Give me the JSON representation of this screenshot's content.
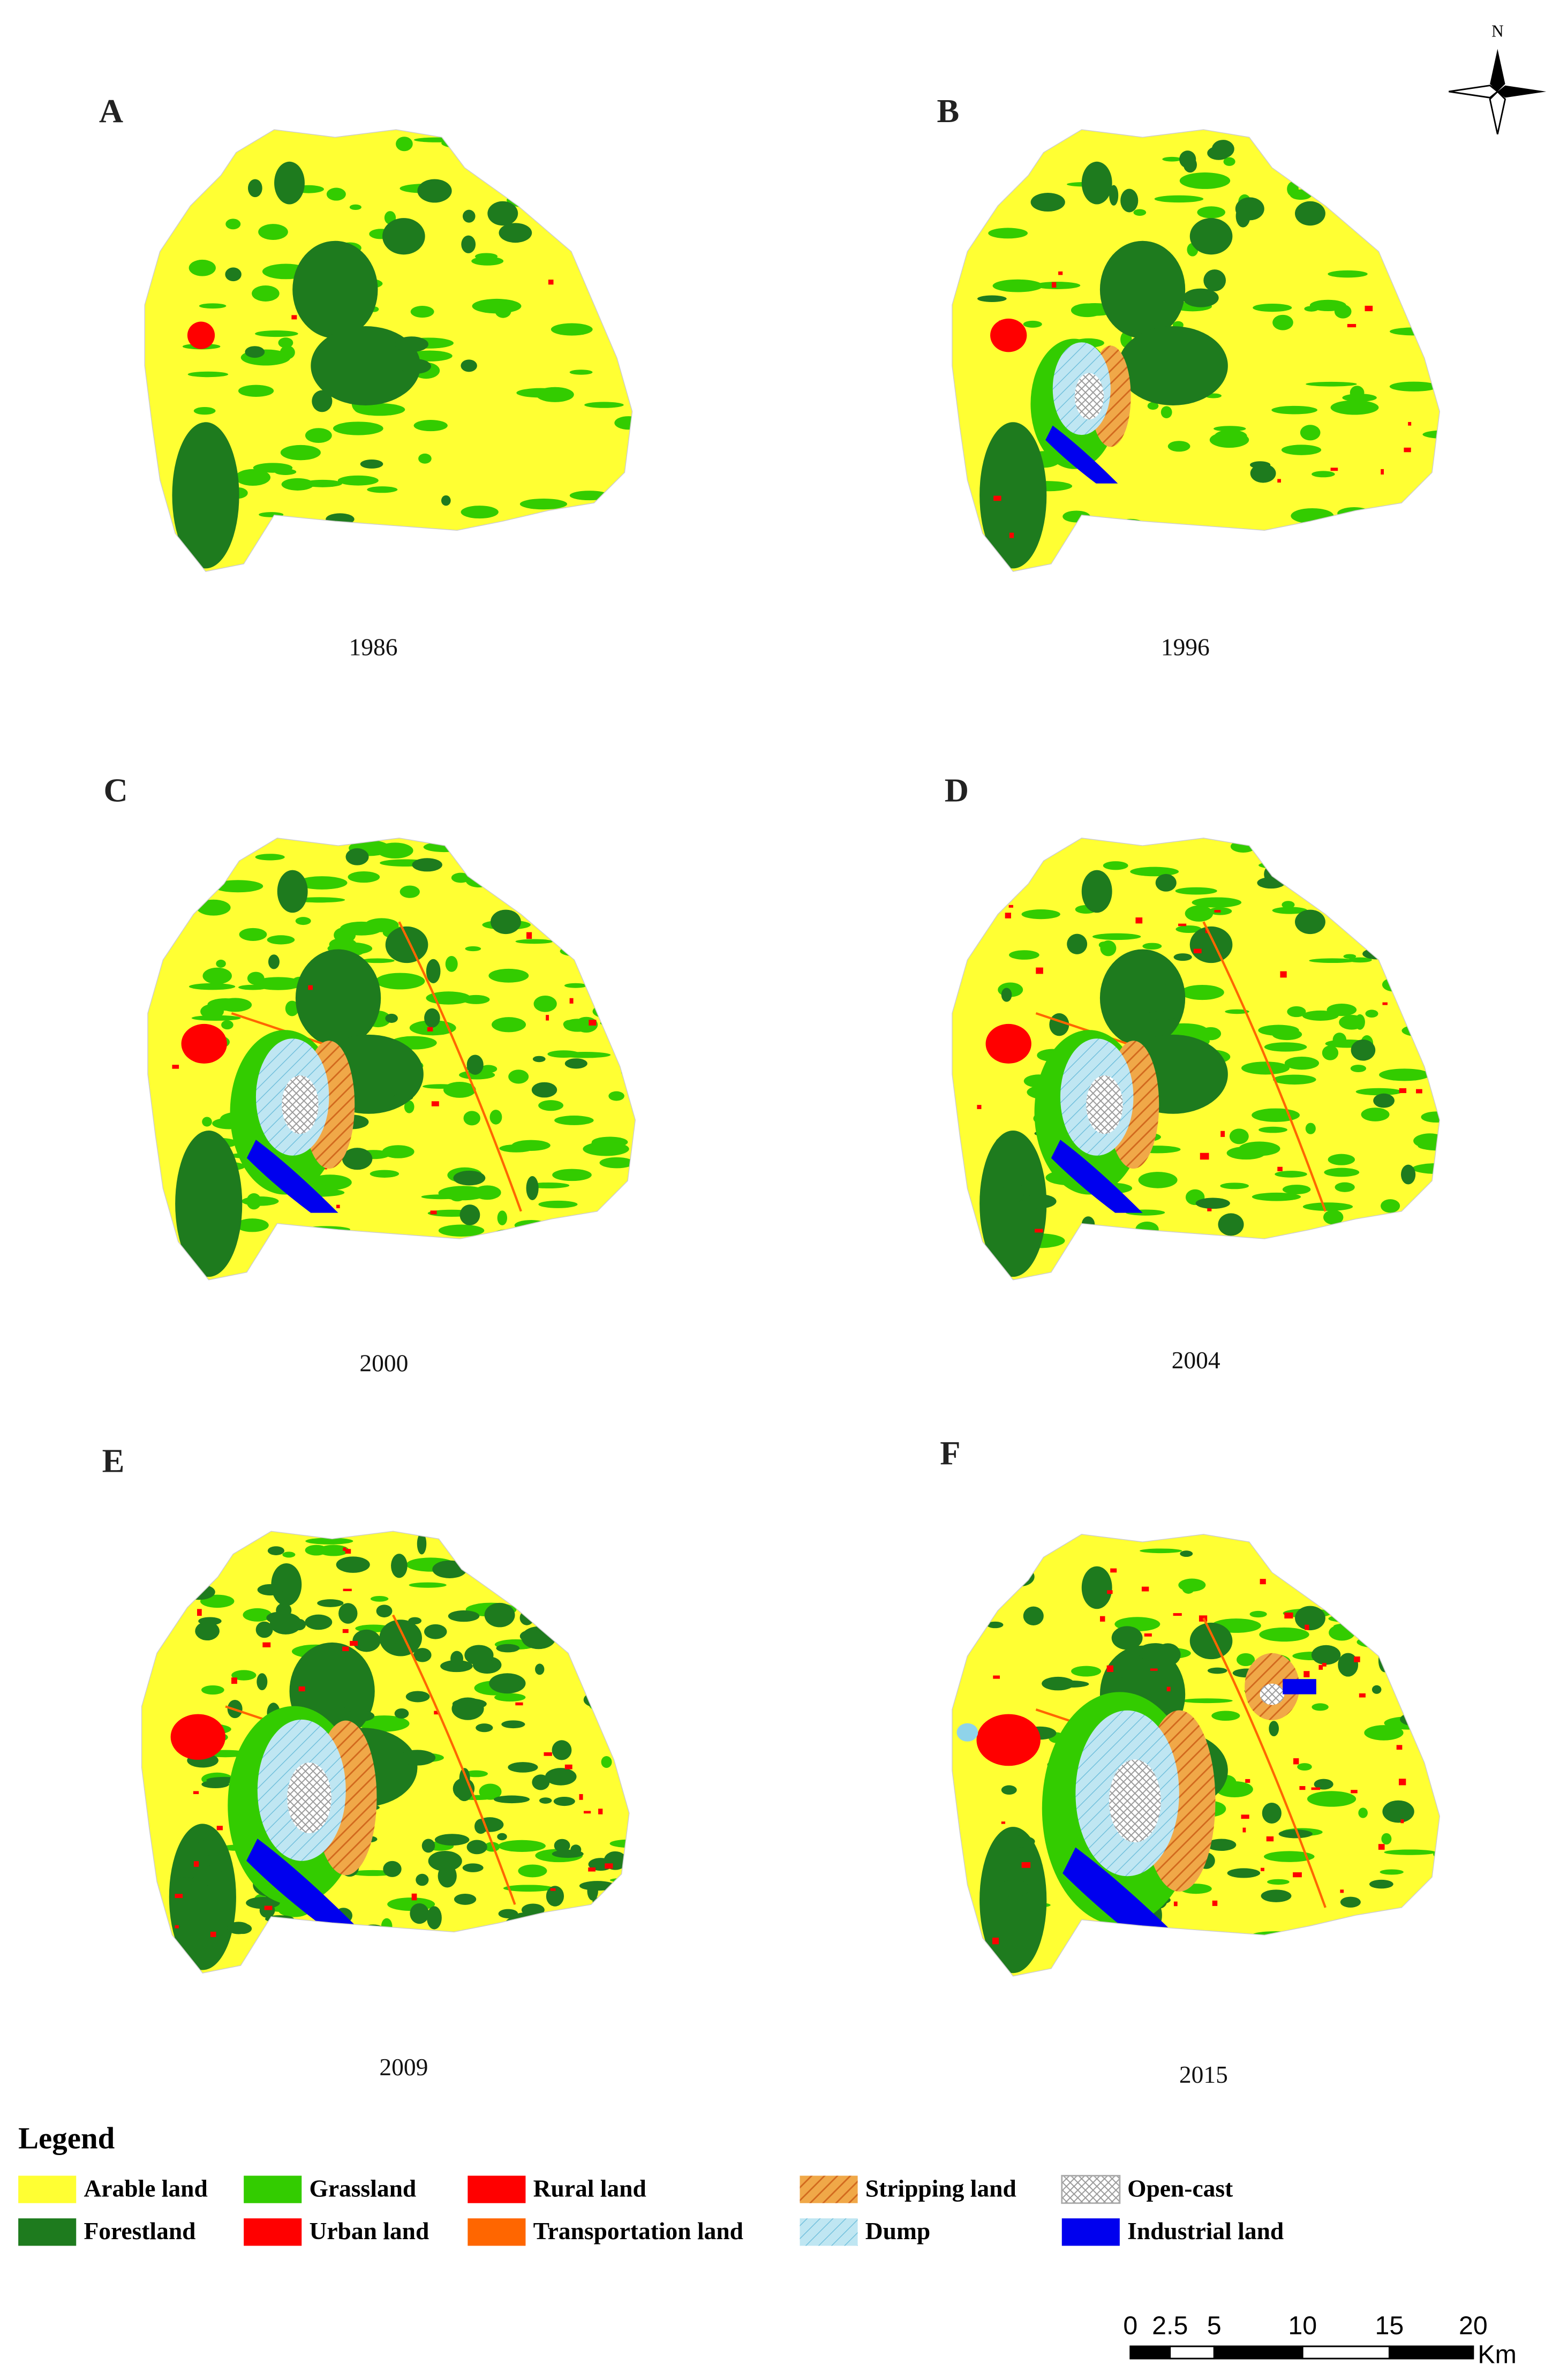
{
  "compass": {
    "label": "N"
  },
  "panels": [
    {
      "letter": "A",
      "year": "1986"
    },
    {
      "letter": "B",
      "year": "1996"
    },
    {
      "letter": "C",
      "year": "2000"
    },
    {
      "letter": "D",
      "year": "2004"
    },
    {
      "letter": "E",
      "year": "2009"
    },
    {
      "letter": "F",
      "year": "2015"
    }
  ],
  "legend": {
    "title": "Legend",
    "items": [
      "Arable land",
      "Grassland",
      "Rural land",
      "Stripping land",
      "Open-cast",
      "Forestland",
      "Urban land",
      "Transportation land",
      "Dump",
      "Industrial land"
    ]
  },
  "scale_bar": {
    "labels": [
      "0",
      "2.5",
      "5",
      "10",
      "15",
      "20"
    ],
    "unit": "Km"
  }
}
